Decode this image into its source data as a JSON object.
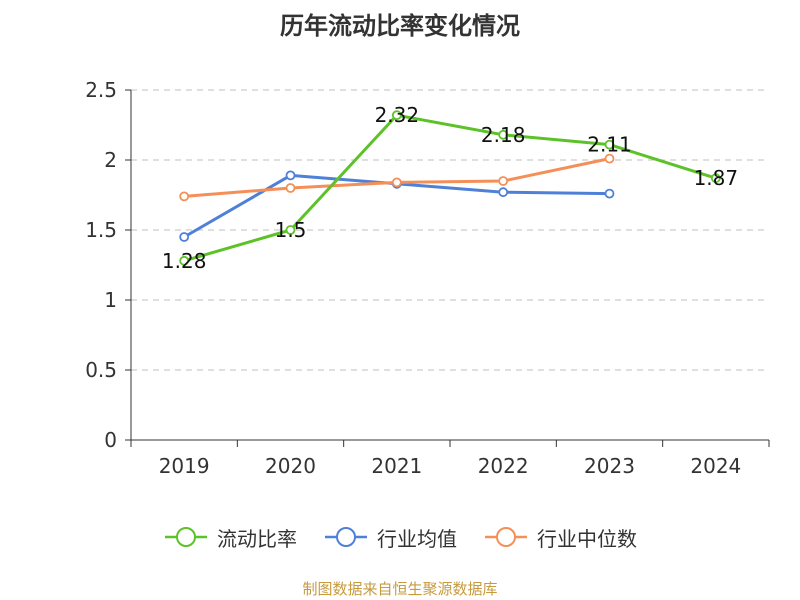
{
  "title": "历年流动比率变化情况",
  "source_note": "制图数据来自恒生聚源数据库",
  "chart_data": {
    "type": "line",
    "categories": [
      "2019",
      "2020",
      "2021",
      "2022",
      "2023",
      "2024"
    ],
    "ylim": [
      0,
      2.5
    ],
    "yticks": [
      0,
      0.5,
      1,
      1.5,
      2,
      2.5
    ],
    "ytick_labels": [
      "0",
      "0.5",
      "1",
      "1.5",
      "2",
      "2.5"
    ],
    "grid": true,
    "legend_position": "bottom",
    "series": [
      {
        "name": "流动比率",
        "color": "#5cc228",
        "values": [
          1.28,
          1.5,
          2.32,
          2.18,
          2.11,
          1.87
        ],
        "labels": [
          "1.28",
          "1.5",
          "2.32",
          "2.18",
          "2.11",
          "1.87"
        ]
      },
      {
        "name": "行业均值",
        "color": "#4f80d8",
        "values": [
          1.45,
          1.89,
          1.83,
          1.77,
          1.76,
          null
        ]
      },
      {
        "name": "行业中位数",
        "color": "#f58f58",
        "values": [
          1.74,
          1.8,
          1.84,
          1.85,
          2.01,
          null
        ]
      }
    ]
  }
}
